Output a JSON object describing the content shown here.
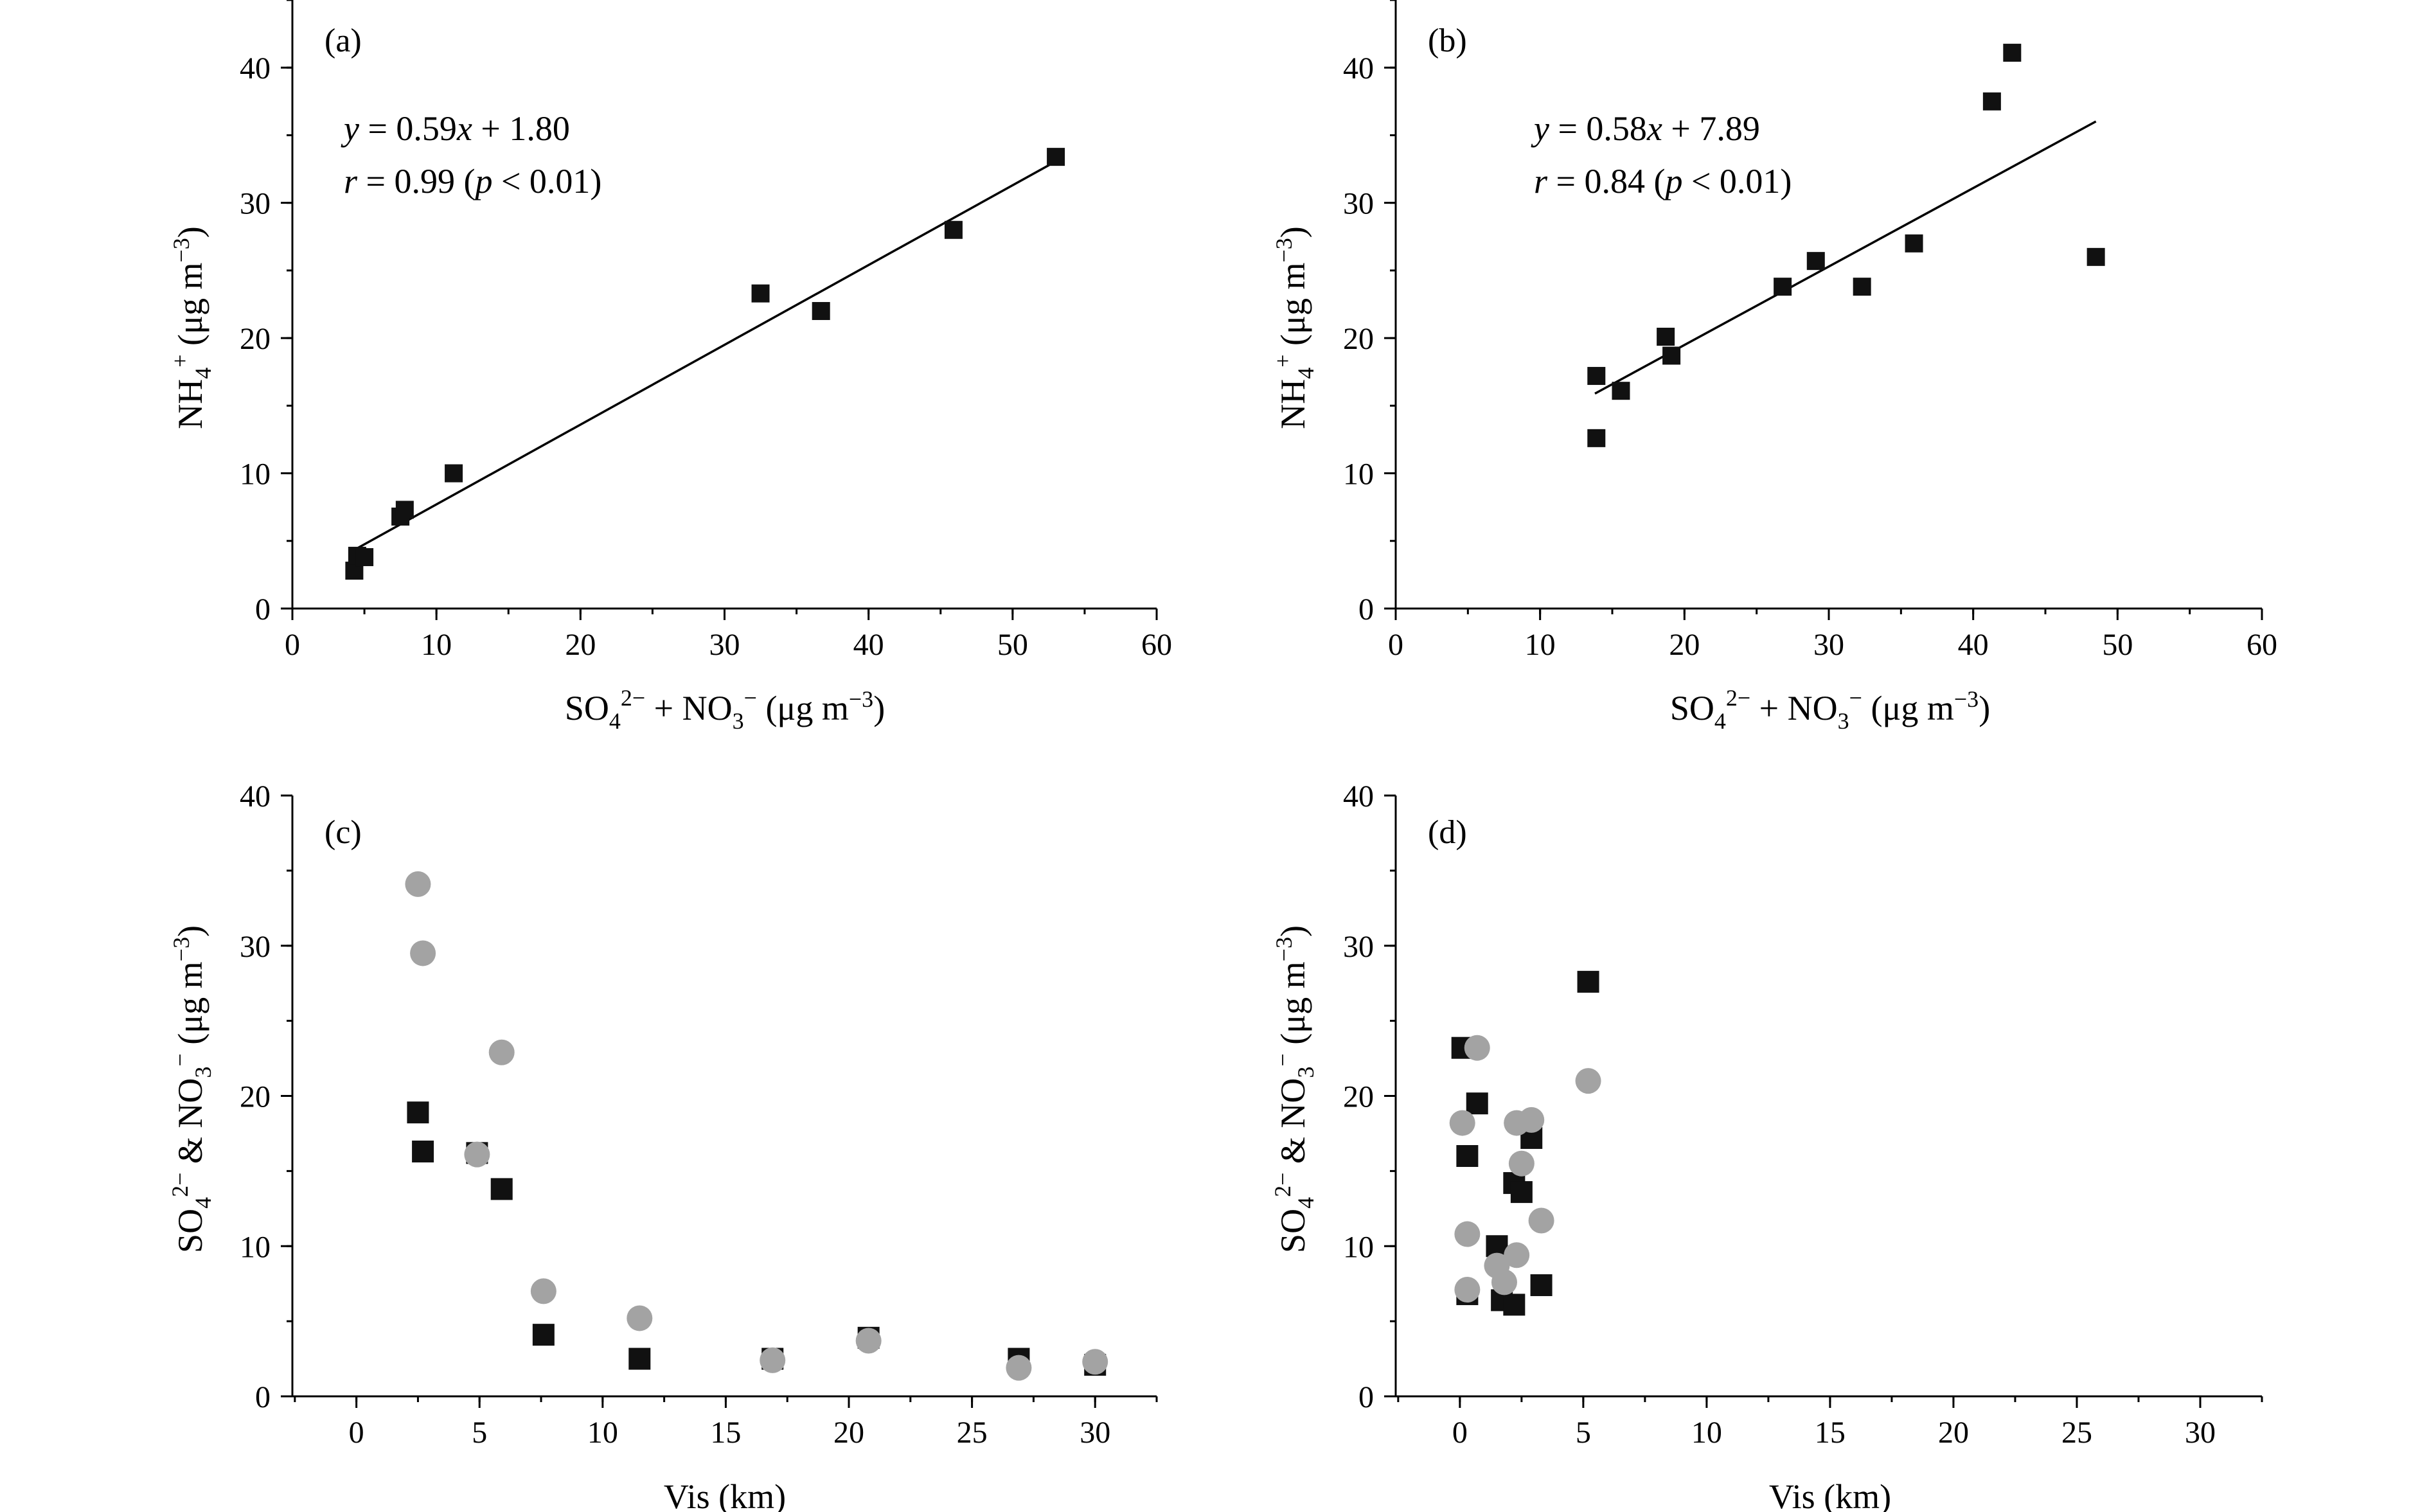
{
  "chart_data": [
    {
      "id": "a",
      "type": "scatter",
      "panel_label": "(a)",
      "xlabel": "SO42− + NO3− (μg m−3)",
      "xlabel_parts": {
        "a": "SO",
        "b": "4",
        "c": "2−",
        "d": " + NO",
        "e": "3",
        "f": "−",
        "g": " (μg m",
        "h": "−3",
        "i": ")"
      },
      "ylabel": "NH4+ (μg m−3)",
      "ylabel_parts": {
        "a": "NH",
        "b": "4",
        "c": "+",
        "d": " (μg m",
        "e": "−3",
        "f": ")"
      },
      "xlim": [
        0,
        60
      ],
      "ylim": [
        0,
        45
      ],
      "xticks": [
        0,
        10,
        20,
        30,
        40,
        50,
        60
      ],
      "yticks": [
        0,
        10,
        20,
        30,
        40
      ],
      "xtick_labels": [
        "0",
        "10",
        "20",
        "30",
        "40",
        "50",
        "60"
      ],
      "ytick_labels": [
        "0",
        "10",
        "20",
        "30",
        "40"
      ],
      "x_minor": 5,
      "y_minor": 5,
      "annotation": {
        "eq_y": "y",
        "eq_mid": " = 0.59",
        "eq_x": "x",
        "eq_end": " + 1.80",
        "r_r": "r",
        "r_mid": " = 0.99 (",
        "r_p": "p",
        "r_end": " < 0.01)"
      },
      "fit": {
        "slope": 0.59,
        "intercept": 1.8,
        "x_range": [
          4.2,
          53
        ]
      },
      "series": [
        {
          "name": "NH4+",
          "marker": "square",
          "color": "#111111",
          "points": [
            [
              4.3,
              2.8
            ],
            [
              4.5,
              3.9
            ],
            [
              5.0,
              3.8
            ],
            [
              7.5,
              6.8
            ],
            [
              7.8,
              7.3
            ],
            [
              11.2,
              10.0
            ],
            [
              32.5,
              23.3
            ],
            [
              36.7,
              22.0
            ],
            [
              45.9,
              28.0
            ],
            [
              53.0,
              33.4
            ]
          ]
        }
      ]
    },
    {
      "id": "b",
      "type": "scatter",
      "panel_label": "(b)",
      "xlabel": "SO42− + NO3− (μg m−3)",
      "xlabel_parts": {
        "a": "SO",
        "b": "4",
        "c": "2−",
        "d": " + NO",
        "e": "3",
        "f": "−",
        "g": " (μg m",
        "h": "−3",
        "i": ")"
      },
      "ylabel": "NH4+ (μg m−3)",
      "ylabel_parts": {
        "a": "NH",
        "b": "4",
        "c": "+",
        "d": " (μg m",
        "e": "−3",
        "f": ")"
      },
      "xlim": [
        0,
        60
      ],
      "ylim": [
        0,
        45
      ],
      "xticks": [
        0,
        10,
        20,
        30,
        40,
        50,
        60
      ],
      "yticks": [
        0,
        10,
        20,
        30,
        40
      ],
      "xtick_labels": [
        "0",
        "10",
        "20",
        "30",
        "40",
        "50",
        "60"
      ],
      "ytick_labels": [
        "0",
        "10",
        "20",
        "30",
        "40"
      ],
      "x_minor": 5,
      "y_minor": 5,
      "annotation": {
        "eq_y": "y",
        "eq_mid": " = 0.58",
        "eq_x": "x",
        "eq_end": " + 7.89",
        "r_r": "r",
        "r_mid": " = 0.84 (",
        "r_p": "p",
        "r_end": " < 0.01)"
      },
      "fit": {
        "slope": 0.58,
        "intercept": 7.89,
        "x_range": [
          13.8,
          48.5
        ]
      },
      "series": [
        {
          "name": "NH4+",
          "marker": "square",
          "color": "#111111",
          "points": [
            [
              13.9,
              17.2
            ],
            [
              13.9,
              12.6
            ],
            [
              15.6,
              16.1
            ],
            [
              18.7,
              20.1
            ],
            [
              19.1,
              18.7
            ],
            [
              26.8,
              23.8
            ],
            [
              29.1,
              25.7
            ],
            [
              32.3,
              23.8
            ],
            [
              35.9,
              27.0
            ],
            [
              41.3,
              37.5
            ],
            [
              42.7,
              41.1
            ],
            [
              48.5,
              26.0
            ]
          ]
        }
      ]
    },
    {
      "id": "c",
      "type": "scatter",
      "panel_label": "(c)",
      "xlabel": "Vis (km)",
      "ylabel": "SO42− & NO3− (μg m−3)",
      "ylabel_parts": {
        "a": "SO",
        "b": "4",
        "c": "2−",
        "d": " & NO",
        "e": "3",
        "f": "−",
        "g": " (μg m",
        "h": "−3",
        "i": ")"
      },
      "xlim": [
        -2.6,
        32.5
      ],
      "ylim": [
        0,
        40
      ],
      "xticks": [
        0,
        5,
        10,
        15,
        20,
        25,
        30
      ],
      "yticks": [
        0,
        10,
        20,
        30,
        40
      ],
      "xtick_labels": [
        "0",
        "5",
        "10",
        "15",
        "20",
        "25",
        "30"
      ],
      "ytick_labels": [
        "0",
        "10",
        "20",
        "30",
        "40"
      ],
      "x_minor": 2.5,
      "y_minor": 5,
      "series": [
        {
          "name": "SO42−",
          "marker": "square",
          "color": "#111111",
          "points": [
            [
              2.5,
              18.9
            ],
            [
              2.7,
              16.3
            ],
            [
              4.9,
              16.2
            ],
            [
              5.9,
              13.8
            ],
            [
              7.6,
              4.1
            ],
            [
              11.5,
              2.5
            ],
            [
              16.9,
              2.5
            ],
            [
              20.8,
              3.9
            ],
            [
              26.9,
              2.5
            ],
            [
              30.0,
              2.1
            ]
          ]
        },
        {
          "name": "NO3−",
          "marker": "circle",
          "color": "#a3a3a3",
          "points": [
            [
              2.5,
              34.1
            ],
            [
              2.7,
              29.5
            ],
            [
              4.9,
              16.1
            ],
            [
              5.9,
              22.9
            ],
            [
              7.6,
              7.0
            ],
            [
              11.5,
              5.2
            ],
            [
              16.9,
              2.4
            ],
            [
              20.8,
              3.7
            ],
            [
              26.9,
              1.9
            ],
            [
              30.0,
              2.3
            ]
          ]
        }
      ]
    },
    {
      "id": "d",
      "type": "scatter",
      "panel_label": "(d)",
      "xlabel": "Vis (km)",
      "ylabel": "SO42− & NO3− (μg m−3)",
      "ylabel_parts": {
        "a": "SO",
        "b": "4",
        "c": "2−",
        "d": " & NO",
        "e": "3",
        "f": "−",
        "g": " (μg m",
        "h": "−3",
        "i": ")"
      },
      "xlim": [
        -2.6,
        32.5
      ],
      "ylim": [
        0,
        40
      ],
      "xticks": [
        0,
        5,
        10,
        15,
        20,
        25,
        30
      ],
      "yticks": [
        0,
        10,
        20,
        30,
        40
      ],
      "xtick_labels": [
        "0",
        "5",
        "10",
        "15",
        "20",
        "25",
        "30"
      ],
      "ytick_labels": [
        "0",
        "10",
        "20",
        "30",
        "40"
      ],
      "x_minor": 2.5,
      "y_minor": 5,
      "series": [
        {
          "name": "SO42−",
          "marker": "square",
          "color": "#111111",
          "points": [
            [
              0.1,
              23.2
            ],
            [
              0.3,
              16.0
            ],
            [
              0.7,
              19.5
            ],
            [
              0.3,
              6.8
            ],
            [
              1.5,
              10.0
            ],
            [
              1.7,
              6.4
            ],
            [
              2.2,
              14.2
            ],
            [
              2.2,
              6.1
            ],
            [
              2.5,
              13.6
            ],
            [
              2.9,
              17.2
            ],
            [
              3.3,
              7.4
            ],
            [
              5.2,
              27.6
            ]
          ]
        },
        {
          "name": "NO3−",
          "marker": "circle",
          "color": "#a3a3a3",
          "points": [
            [
              0.1,
              18.2
            ],
            [
              0.3,
              10.8
            ],
            [
              0.3,
              7.1
            ],
            [
              0.7,
              23.2
            ],
            [
              1.5,
              8.7
            ],
            [
              1.8,
              7.6
            ],
            [
              2.3,
              9.4
            ],
            [
              2.3,
              18.2
            ],
            [
              2.5,
              15.5
            ],
            [
              2.9,
              18.4
            ],
            [
              3.3,
              11.7
            ],
            [
              5.2,
              21.0
            ]
          ]
        }
      ]
    }
  ]
}
